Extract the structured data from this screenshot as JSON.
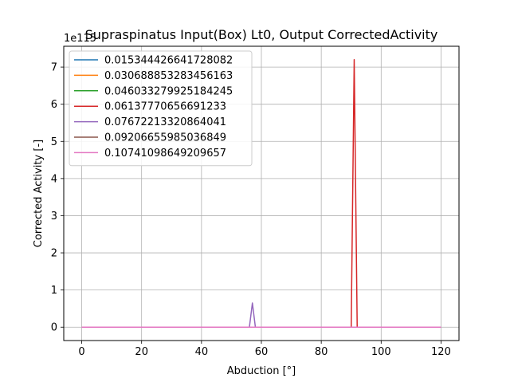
{
  "chart_data": {
    "type": "line",
    "title": "Supraspinatus Input(Box) Lt0, Output CorrectedActivity",
    "xlabel": "Abduction [°]",
    "ylabel": "Corrected Activity [-]",
    "y_offset_text": "1e115",
    "xlim": [
      -6,
      126
    ],
    "ylim": [
      -0.36,
      7.56
    ],
    "y_scale_exponent": 115,
    "x_ticks": [
      0,
      20,
      40,
      60,
      80,
      100,
      120
    ],
    "y_ticks": [
      0,
      1,
      2,
      3,
      4,
      5,
      6,
      7
    ],
    "x_tick_labels": [
      "0",
      "20",
      "40",
      "60",
      "80",
      "100",
      "120"
    ],
    "y_tick_labels": [
      "0",
      "1",
      "2",
      "3",
      "4",
      "5",
      "6",
      "7"
    ],
    "grid": true,
    "legend_position": "upper-left",
    "series": [
      {
        "name": "0.015344426641728082",
        "color": "#1f77b4",
        "x": [
          0,
          120
        ],
        "y": [
          0,
          0
        ]
      },
      {
        "name": "0.030688853283456163",
        "color": "#ff7f0e",
        "x": [
          0,
          120
        ],
        "y": [
          0,
          0
        ]
      },
      {
        "name": "0.046033279925184245",
        "color": "#2ca02c",
        "x": [
          0,
          120
        ],
        "y": [
          0,
          0
        ]
      },
      {
        "name": "0.06137770656691233",
        "color": "#d62728",
        "x": [
          0,
          90,
          91,
          92,
          120
        ],
        "y": [
          0,
          0,
          7.2,
          0,
          0
        ]
      },
      {
        "name": "0.07672213320864041",
        "color": "#9467bd",
        "x": [
          0,
          56,
          57,
          58,
          120
        ],
        "y": [
          0,
          0,
          0.65,
          0,
          0
        ]
      },
      {
        "name": "0.09206655985036849",
        "color": "#8c564b",
        "x": [
          0,
          120
        ],
        "y": [
          0,
          0
        ]
      },
      {
        "name": "0.10741098649209657",
        "color": "#e377c2",
        "x": [
          0,
          120
        ],
        "y": [
          0,
          0
        ]
      }
    ]
  }
}
